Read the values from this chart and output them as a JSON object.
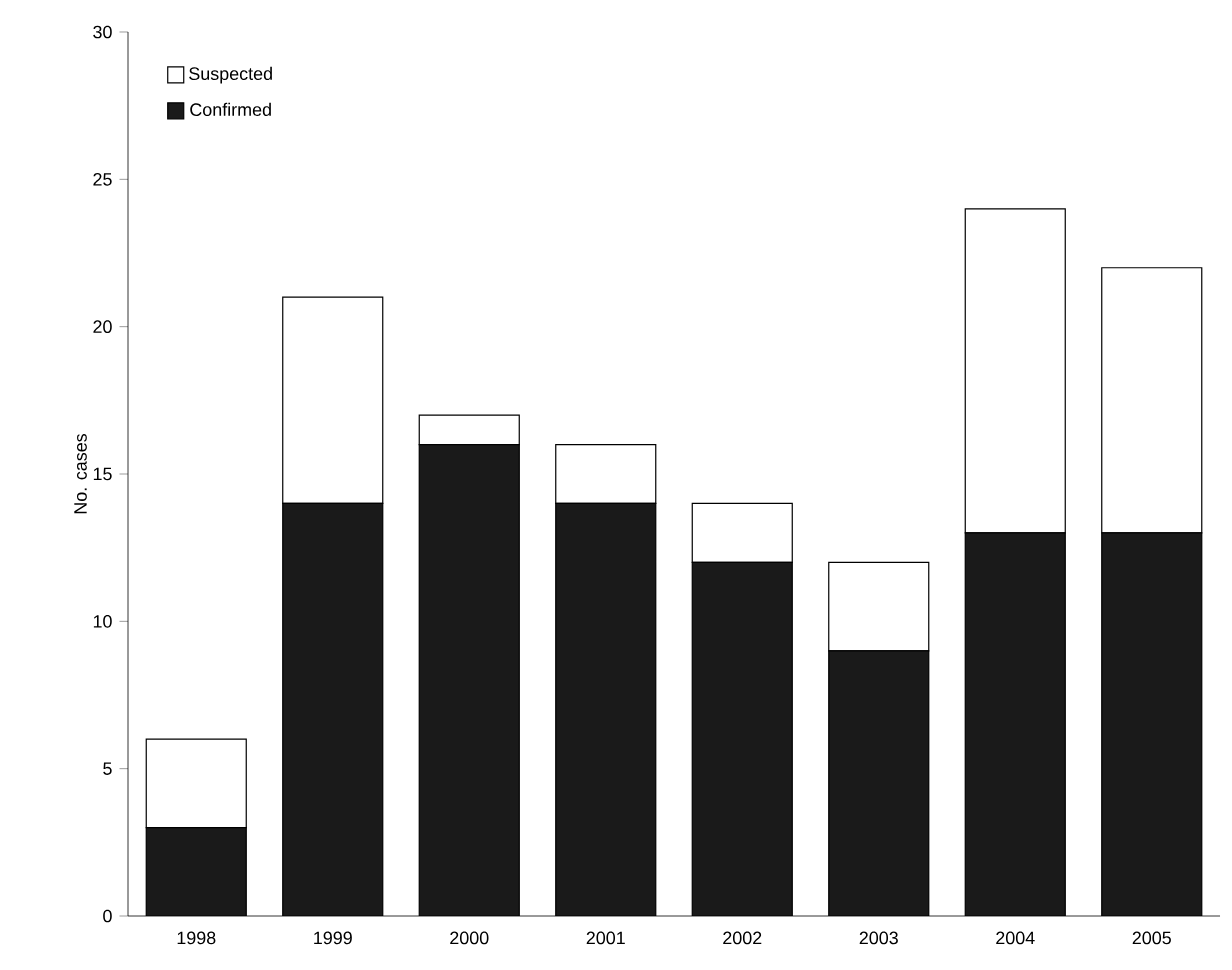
{
  "chart_data": {
    "type": "bar",
    "stacked": true,
    "ylabel": "No. cases",
    "categories": [
      "1998",
      "1999",
      "2000",
      "2001",
      "2002",
      "2003",
      "2004",
      "2005"
    ],
    "series": [
      {
        "name": "Confirmed",
        "color": "#1a1a1a",
        "values": [
          3,
          14,
          16,
          14,
          12,
          9,
          13,
          13
        ]
      },
      {
        "name": "Suspected",
        "color": "#ffffff",
        "values": [
          3,
          7,
          1,
          2,
          2,
          3,
          11,
          9
        ]
      }
    ],
    "ylim": [
      0,
      30
    ],
    "yticks": [
      0,
      5,
      10,
      15,
      20,
      25,
      30
    ],
    "legend": "top left",
    "grid": false
  }
}
